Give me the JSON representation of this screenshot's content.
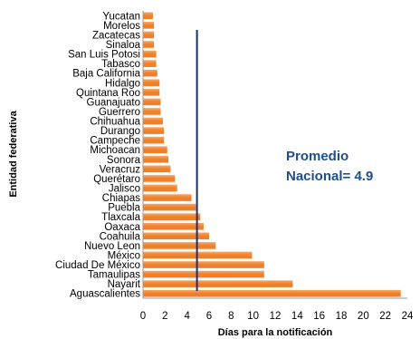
{
  "chart_data": {
    "type": "bar",
    "orientation": "horizontal",
    "categories": [
      "Yucatan",
      "Morelos",
      "Zacatecas",
      "Sinaloa",
      "San  Luis Potosi",
      "Tabasco",
      "Baja California",
      "Hidalgo",
      "Quintana Roo",
      "Guanajuato",
      "Guerrero",
      "Chihuahua",
      "Durango",
      "Campeche",
      "Michoacan",
      "Sonora",
      "Veracruz",
      "Querétaro",
      "Jalisco",
      "Chiapas",
      "Puebla",
      "Tlaxcala",
      "Oaxaca",
      "Coahuila",
      "Nuevo Leon",
      "México",
      "Ciudad De México",
      "Tamaulipas",
      "Nayarit",
      "Aguascalientes"
    ],
    "values": [
      0.9,
      1.0,
      1.0,
      1.0,
      1.2,
      1.2,
      1.3,
      1.5,
      1.5,
      1.6,
      1.6,
      1.8,
      1.9,
      1.9,
      2.2,
      2.3,
      2.5,
      2.9,
      3.1,
      4.4,
      4.8,
      5.2,
      5.5,
      6.0,
      6.6,
      9.9,
      11.0,
      11.0,
      13.6,
      23.4
    ],
    "xlabel": "Días para la notificación",
    "ylabel": "Entidad federativa",
    "xlim": [
      0,
      24
    ],
    "xticks": [
      "0",
      "2",
      "4",
      "6",
      "8",
      "10",
      "12",
      "14",
      "16",
      "18",
      "20",
      "22",
      "24"
    ],
    "reference_line": {
      "value": 4.9,
      "color": "#1f2d6e"
    },
    "annotation": {
      "line1": "Promedio",
      "line2": "Nacional= 4.9"
    },
    "colors": {
      "bar": "#f07f2a",
      "bar_highlight": "#f6a868",
      "annotation": "#1f4e8c",
      "axis": "#9a9a9a"
    },
    "grid": false,
    "legend": "none"
  }
}
